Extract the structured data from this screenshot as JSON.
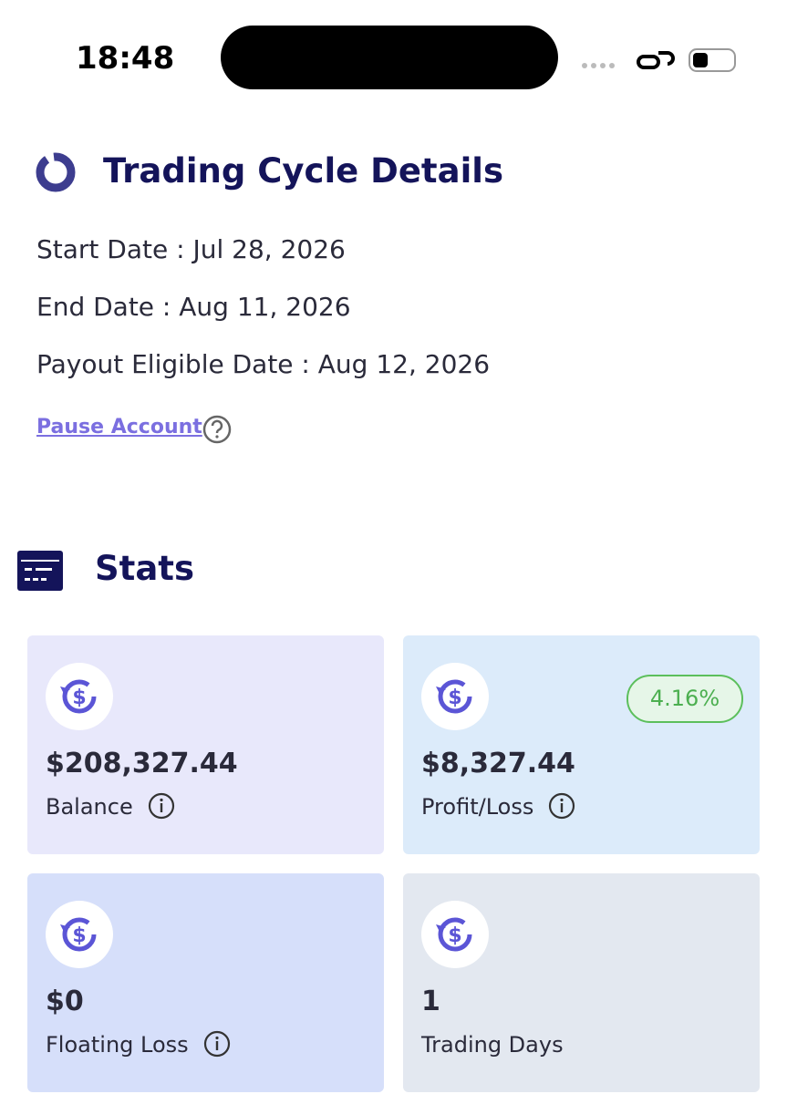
{
  "status_bar": {
    "time": "18:48"
  },
  "cycle": {
    "title": "Trading Cycle Details",
    "lines": [
      "Start Date : Jul 28, 2026",
      "End Date : Aug 11, 2026",
      "Payout Eligible Date : Aug 12, 2026"
    ],
    "pause_link": "Pause Account"
  },
  "stats": {
    "title": "Stats",
    "cards": [
      {
        "value": "$208,327.44",
        "label": "Balance"
      },
      {
        "value": "$8,327.44",
        "label": "Profit/Loss",
        "badge": "4.16%"
      },
      {
        "value": "$0",
        "label": "Floating Loss"
      },
      {
        "value": "1",
        "label": "Trading Days"
      }
    ]
  }
}
